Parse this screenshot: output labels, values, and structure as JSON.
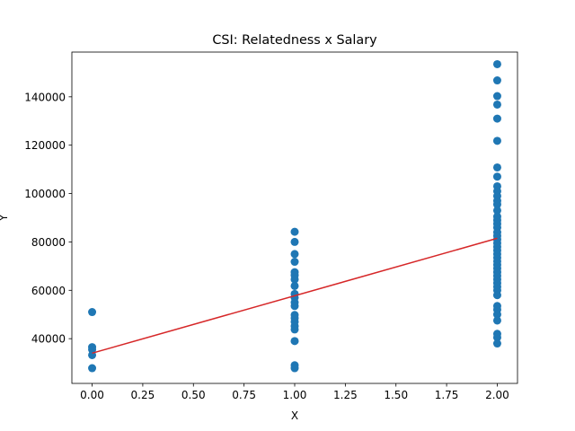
{
  "chart_data": {
    "type": "scatter",
    "title": "CSI: Relatedness x Salary",
    "xlabel": "X",
    "ylabel": "Y",
    "xlim": [
      -0.1,
      2.1
    ],
    "ylim": [
      21500,
      158500
    ],
    "grid": false,
    "x_ticks": [
      {
        "value": 0.0,
        "label": "0.00"
      },
      {
        "value": 0.25,
        "label": "0.25"
      },
      {
        "value": 0.5,
        "label": "0.50"
      },
      {
        "value": 0.75,
        "label": "0.75"
      },
      {
        "value": 1.0,
        "label": "1.00"
      },
      {
        "value": 1.25,
        "label": "1.25"
      },
      {
        "value": 1.5,
        "label": "1.50"
      },
      {
        "value": 1.75,
        "label": "1.75"
      },
      {
        "value": 2.0,
        "label": "2.00"
      }
    ],
    "y_ticks": [
      {
        "value": 40000,
        "label": "40000"
      },
      {
        "value": 60000,
        "label": "60000"
      },
      {
        "value": 80000,
        "label": "80000"
      },
      {
        "value": 100000,
        "label": "100000"
      },
      {
        "value": 120000,
        "label": "120000"
      },
      {
        "value": 140000,
        "label": "140000"
      }
    ],
    "series": [
      {
        "type": "scatter",
        "color": "#1f77b4",
        "points": [
          [
            0,
            51000
          ],
          [
            0,
            36500
          ],
          [
            0,
            35500
          ],
          [
            0,
            33200
          ],
          [
            0,
            27800
          ],
          [
            1,
            84200
          ],
          [
            1,
            80000
          ],
          [
            1,
            75000
          ],
          [
            1,
            71800
          ],
          [
            1,
            67500
          ],
          [
            1,
            66200
          ],
          [
            1,
            64500
          ],
          [
            1,
            61800
          ],
          [
            1,
            58500
          ],
          [
            1,
            57000
          ],
          [
            1,
            55000
          ],
          [
            1,
            53500
          ],
          [
            1,
            49800
          ],
          [
            1,
            48500
          ],
          [
            1,
            47000
          ],
          [
            1,
            45200
          ],
          [
            1,
            43800
          ],
          [
            1,
            39000
          ],
          [
            1,
            29000
          ],
          [
            1,
            27800
          ],
          [
            2,
            153500
          ],
          [
            2,
            146800
          ],
          [
            2,
            140300
          ],
          [
            2,
            136800
          ],
          [
            2,
            131000
          ],
          [
            2,
            121800
          ],
          [
            2,
            110800
          ],
          [
            2,
            107000
          ],
          [
            2,
            103000
          ],
          [
            2,
            101000
          ],
          [
            2,
            99000
          ],
          [
            2,
            97000
          ],
          [
            2,
            95500
          ],
          [
            2,
            93000
          ],
          [
            2,
            90500
          ],
          [
            2,
            89000
          ],
          [
            2,
            87500
          ],
          [
            2,
            86000
          ],
          [
            2,
            84000
          ],
          [
            2,
            82500
          ],
          [
            2,
            81000
          ],
          [
            2,
            79500
          ],
          [
            2,
            78000
          ],
          [
            2,
            76500
          ],
          [
            2,
            75000
          ],
          [
            2,
            73500
          ],
          [
            2,
            72000
          ],
          [
            2,
            70500
          ],
          [
            2,
            69000
          ],
          [
            2,
            67500
          ],
          [
            2,
            66000
          ],
          [
            2,
            64500
          ],
          [
            2,
            63000
          ],
          [
            2,
            61500
          ],
          [
            2,
            60000
          ],
          [
            2,
            58000
          ],
          [
            2,
            53500
          ],
          [
            2,
            52000
          ],
          [
            2,
            50000
          ],
          [
            2,
            47500
          ],
          [
            2,
            42000
          ],
          [
            2,
            40500
          ],
          [
            2,
            38000
          ]
        ]
      },
      {
        "type": "line",
        "color": "#d62728",
        "points": [
          [
            0,
            34000
          ],
          [
            2,
            81500
          ]
        ]
      }
    ]
  }
}
